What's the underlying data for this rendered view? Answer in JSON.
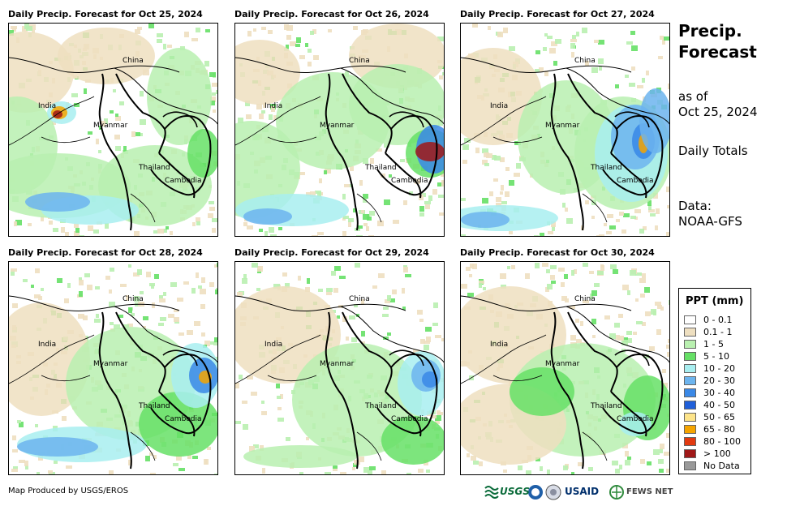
{
  "panels": [
    {
      "title": "Daily Precip. Forecast for Oct 25, 2024"
    },
    {
      "title": "Daily Precip. Forecast for Oct 26, 2024"
    },
    {
      "title": "Daily Precip. Forecast for Oct 27, 2024"
    },
    {
      "title": "Daily Precip. Forecast for Oct 28, 2024"
    },
    {
      "title": "Daily Precip. Forecast for Oct 29, 2024"
    },
    {
      "title": "Daily Precip. Forecast for Oct 30, 2024"
    }
  ],
  "map_labels": {
    "china": "China",
    "india": "India",
    "myanmar": "Myanmar",
    "thailand": "Thailand",
    "cambodia": "Cambodia"
  },
  "side": {
    "title_line1": "Precip.",
    "title_line2": "Forecast",
    "as_of_line1": "as of",
    "as_of_line2": "Oct 25, 2024",
    "totals": "Daily Totals",
    "data_line1": "Data:",
    "data_line2": "NOAA-GFS"
  },
  "legend": {
    "title": "PPT (mm)",
    "items": [
      {
        "label": "0 - 0.1",
        "color": "#ffffff"
      },
      {
        "label": "0.1 - 1",
        "color": "#eedfc0"
      },
      {
        "label": "1 - 5",
        "color": "#b9f0b0"
      },
      {
        "label": "5 - 10",
        "color": "#66e066"
      },
      {
        "label": "10 - 20",
        "color": "#a8eef0"
      },
      {
        "label": "20 - 30",
        "color": "#6cb4ee"
      },
      {
        "label": "30 - 40",
        "color": "#3a88e6"
      },
      {
        "label": "40 - 50",
        "color": "#1f5fd9"
      },
      {
        "label": "50 - 65",
        "color": "#fde48a"
      },
      {
        "label": "65 - 80",
        "color": "#f5a400"
      },
      {
        "label": "80 - 100",
        "color": "#e23a10"
      },
      {
        "label": "> 100",
        "color": "#a01818"
      },
      {
        "label": "No Data",
        "color": "#999999"
      }
    ]
  },
  "credit": "Map Produced by USGS/EROS",
  "logos": {
    "usgs": "USGS",
    "usaid": "USAID",
    "fews": "FEWS NET"
  },
  "colors": {
    "dry": "#eedfc0",
    "light": "#b9f0b0",
    "moderate": "#66e066",
    "cyan": "#a8eef0",
    "blue": "#6cb4ee",
    "deepblue": "#3a88e6",
    "heavy": "#a01818",
    "red": "#e23a10",
    "orange": "#f5a400"
  }
}
